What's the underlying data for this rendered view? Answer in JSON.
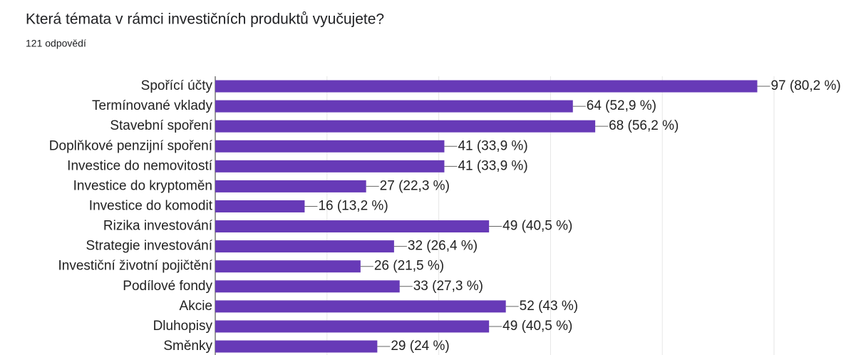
{
  "chart_data": {
    "type": "bar",
    "orientation": "horizontal",
    "title": "Která témata v rámci investičních produktů vyučujete?",
    "subtitle": "121 odpovědí",
    "categories": [
      "Spořící účty",
      "Termínované vklady",
      "Stavební spoření",
      "Doplňkové penzijní spoření",
      "Investice do nemovitostí",
      "Investice do kryptoměn",
      "Investice do komodit",
      "Rizika investování",
      "Strategie investování",
      "Investiční životní pojičtění",
      "Podílové fondy",
      "Akcie",
      "Dluhopisy",
      "Směnky"
    ],
    "values": [
      97,
      64,
      68,
      41,
      41,
      27,
      16,
      49,
      32,
      26,
      33,
      52,
      49,
      29
    ],
    "value_labels": [
      "97 (80,2 %)",
      "64 (52,9 %)",
      "68 (56,2 %)",
      "41 (33,9 %)",
      "41 (33,9 %)",
      "27 (22,3 %)",
      "16 (13,2 %)",
      "49 (40,5 %)",
      "32 (26,4 %)",
      "26 (21,5 %)",
      "33 (27,3 %)",
      "52 (43 %)",
      "49 (40,5 %)",
      "29 (24 %)"
    ],
    "color": "#673ab7",
    "xlim": [
      0,
      100
    ],
    "xticks": [
      0,
      20,
      40,
      60,
      80,
      100
    ],
    "grid": true
  }
}
